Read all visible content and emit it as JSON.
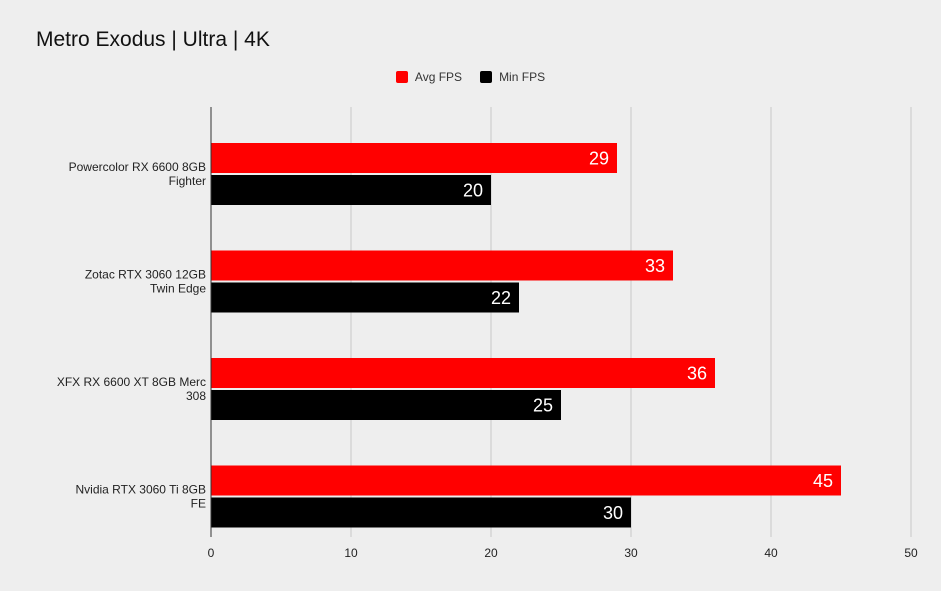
{
  "chart_data": {
    "type": "bar",
    "orientation": "horizontal",
    "title": "Metro Exodus | Ultra | 4K",
    "xlabel": "",
    "ylabel": "",
    "categories": [
      "Powercolor RX 6600 8GB Fighter",
      "Zotac RTX 3060 12GB Twin Edge",
      "XFX RX 6600 XT 8GB Merc 308",
      "Nvidia RTX 3060 Ti 8GB FE"
    ],
    "series": [
      {
        "name": "Avg FPS",
        "color": "#ff0000",
        "values": [
          29,
          33,
          36,
          45
        ]
      },
      {
        "name": "Min FPS",
        "color": "#000000",
        "values": [
          20,
          22,
          25,
          30
        ]
      }
    ],
    "xlim": [
      0,
      50
    ],
    "xticks": [
      0,
      10,
      20,
      30,
      40,
      50
    ],
    "grid": true,
    "legend_position": "top",
    "data_labels": true
  }
}
